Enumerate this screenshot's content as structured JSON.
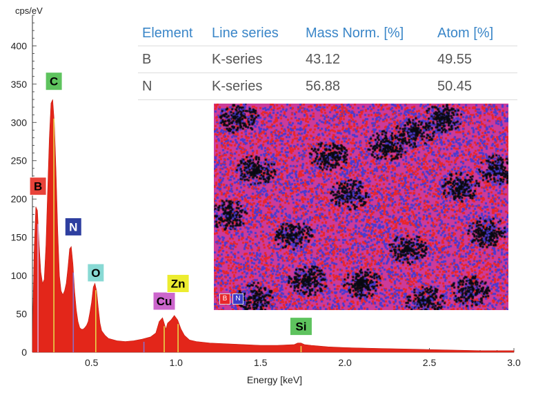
{
  "chart_data": {
    "type": "area",
    "ylabel": "cps/eV",
    "xlabel": "Energy [keV]",
    "xlim": [
      0.15,
      3.0
    ],
    "ylim": [
      0,
      440
    ],
    "xticks": [
      "0.5",
      "1.0",
      "1.5",
      "2.0",
      "2.5",
      "3.0"
    ],
    "xtick_values": [
      0.5,
      1.0,
      1.5,
      2.0,
      2.5,
      3.0
    ],
    "yticks": [
      "0",
      "50",
      "100",
      "150",
      "200",
      "250",
      "300",
      "350",
      "400"
    ],
    "ytick_values": [
      0,
      50,
      100,
      150,
      200,
      250,
      300,
      350,
      400
    ],
    "fill_color": "#e3261a",
    "series": [
      {
        "x": [
          0.15,
          0.16,
          0.17,
          0.18,
          0.19,
          0.2,
          0.21,
          0.22,
          0.23,
          0.24,
          0.25,
          0.26,
          0.27,
          0.28,
          0.29,
          0.3,
          0.31,
          0.32,
          0.33,
          0.34,
          0.35,
          0.36,
          0.37,
          0.38,
          0.39,
          0.4,
          0.41,
          0.42,
          0.43,
          0.44,
          0.45,
          0.46,
          0.47,
          0.48,
          0.49,
          0.5,
          0.51,
          0.52,
          0.53,
          0.54,
          0.55,
          0.56,
          0.58,
          0.6,
          0.65,
          0.7,
          0.75,
          0.8,
          0.85,
          0.88,
          0.9,
          0.92,
          0.93,
          0.94,
          0.95,
          0.97,
          0.99,
          1.01,
          1.03,
          1.05,
          1.08,
          1.12,
          1.2,
          1.3,
          1.4,
          1.5,
          1.6,
          1.7,
          1.72,
          1.74,
          1.76,
          1.8,
          1.9,
          2.0,
          2.2,
          2.4,
          2.6,
          2.8,
          3.0
        ],
        "y": [
          20,
          130,
          190,
          185,
          140,
          105,
          90,
          95,
          140,
          210,
          280,
          325,
          330,
          300,
          235,
          160,
          100,
          80,
          75,
          80,
          90,
          110,
          135,
          138,
          115,
          80,
          55,
          40,
          32,
          30,
          30,
          32,
          35,
          40,
          52,
          65,
          85,
          90,
          80,
          58,
          38,
          28,
          22,
          18,
          15,
          14,
          15,
          17,
          20,
          25,
          40,
          45,
          38,
          30,
          38,
          42,
          48,
          42,
          30,
          22,
          16,
          14,
          12,
          11,
          10,
          9,
          9,
          10,
          12,
          12,
          10,
          9,
          7,
          6,
          5,
          4,
          3,
          2,
          2
        ]
      }
    ],
    "lines": [
      {
        "x": 0.183,
        "color": "#d9a9d9"
      },
      {
        "x": 0.277,
        "color": "#e6d84a"
      },
      {
        "x": 0.392,
        "color": "#8a6fc8"
      },
      {
        "x": 0.525,
        "color": "#e6d84a"
      },
      {
        "x": 0.81,
        "color": "#8a6fc8"
      },
      {
        "x": 0.93,
        "color": "#e6d84a"
      },
      {
        "x": 1.012,
        "color": "#e6d84a"
      },
      {
        "x": 1.74,
        "color": "#e6d84a"
      }
    ],
    "peak_labels": [
      {
        "text": "B",
        "x": 0.183,
        "y": 205,
        "bg": "#e8433a",
        "fg": "#000000"
      },
      {
        "text": "C",
        "x": 0.277,
        "y": 342,
        "bg": "#5ec35e",
        "fg": "#000000"
      },
      {
        "text": "N",
        "x": 0.392,
        "y": 152,
        "bg": "#2e3fa0",
        "fg": "#ffffff"
      },
      {
        "text": "O",
        "x": 0.525,
        "y": 92,
        "bg": "#88d9d4",
        "fg": "#000000"
      },
      {
        "text": "Cu",
        "x": 0.93,
        "y": 55,
        "bg": "#cc66cc",
        "fg": "#000000"
      },
      {
        "text": "Zn",
        "x": 1.012,
        "y": 78,
        "bg": "#ecec30",
        "fg": "#000000"
      },
      {
        "text": "Si",
        "x": 1.74,
        "y": 22,
        "bg": "#5ec35e",
        "fg": "#000000"
      }
    ]
  },
  "table": {
    "headers": [
      "Element",
      "Line series",
      "Mass Norm. [%]",
      "Atom [%]"
    ],
    "rows": [
      {
        "element": "B",
        "series": "K-series",
        "mass": "43.12",
        "atom": "49.55"
      },
      {
        "element": "N",
        "series": "K-series",
        "mass": "56.88",
        "atom": "50.45"
      }
    ]
  },
  "map": {
    "legend": [
      {
        "label": "B",
        "color": "#e8262a"
      },
      {
        "label": "N",
        "color": "#3a3ac8"
      }
    ],
    "colors": {
      "boron": "#e8262a",
      "nitrogen": "#4a3ad0",
      "mixed": "#cc3a9a",
      "void": "#0a0a12"
    }
  }
}
